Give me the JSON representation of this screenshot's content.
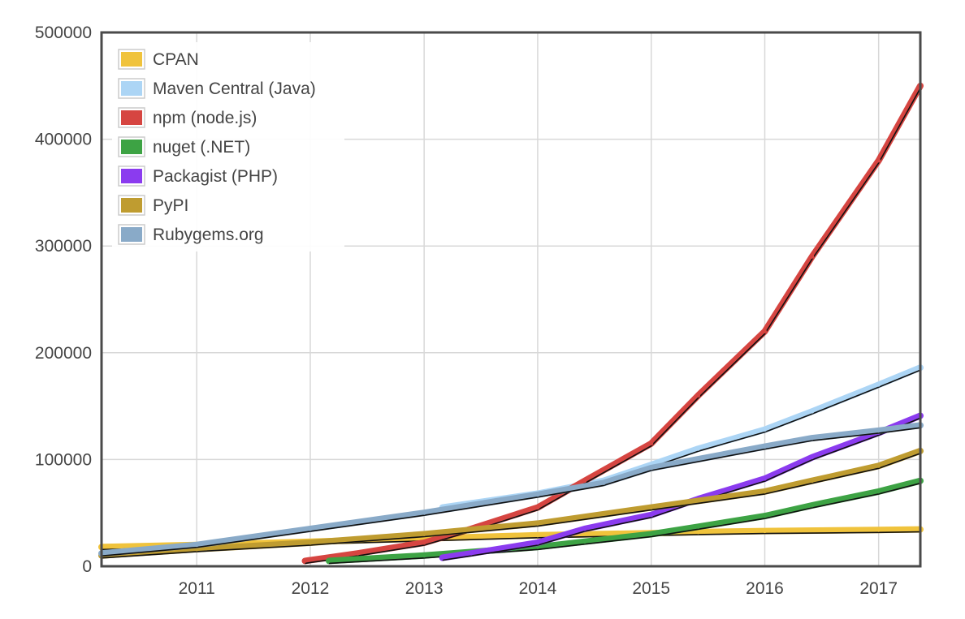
{
  "chart_data": {
    "type": "line",
    "title": "",
    "xlabel": "",
    "ylabel": "",
    "xlim": [
      "2010-03-01",
      "2017-05-15"
    ],
    "ylim": [
      0,
      500000
    ],
    "y_ticks": [
      0,
      100000,
      200000,
      300000,
      400000,
      500000
    ],
    "y_tick_labels": [
      "0",
      "100000",
      "200000",
      "300000",
      "400000",
      "500000"
    ],
    "x_ticks": [
      "2011-01-01",
      "2012-01-01",
      "2013-01-01",
      "2014-01-01",
      "2015-01-01",
      "2016-01-01",
      "2017-01-01"
    ],
    "x_tick_labels": [
      "2011",
      "2012",
      "2013",
      "2014",
      "2015",
      "2016",
      "2017"
    ],
    "grid": true,
    "legend_position": "top-left",
    "series": [
      {
        "name": "CPAN",
        "color": "#f0c33c",
        "x": [
          "2010-03-01",
          "2011-01-01",
          "2012-01-01",
          "2013-01-01",
          "2014-01-01",
          "2015-01-01",
          "2015-06-01",
          "2016-01-01",
          "2017-01-01",
          "2017-05-15"
        ],
        "y": [
          18000,
          20000,
          23000,
          26000,
          29000,
          31000,
          32000,
          33000,
          34000,
          34500
        ]
      },
      {
        "name": "Maven Central (Java)",
        "color": "#acd5f5",
        "x": [
          "2013-03-01",
          "2014-01-01",
          "2014-08-01",
          "2015-01-01",
          "2015-06-01",
          "2016-01-01",
          "2016-06-01",
          "2017-01-01",
          "2017-05-15"
        ],
        "y": [
          55000,
          68000,
          80000,
          95000,
          110000,
          128000,
          145000,
          170000,
          186000
        ]
      },
      {
        "name": "npm (node.js)",
        "color": "#d64541",
        "x": [
          "2011-12-15",
          "2012-06-01",
          "2013-01-01",
          "2013-06-01",
          "2014-01-01",
          "2014-06-01",
          "2015-01-01",
          "2015-06-01",
          "2016-01-01",
          "2016-06-01",
          "2017-01-01",
          "2017-05-15"
        ],
        "y": [
          5000,
          12000,
          22000,
          35000,
          55000,
          80000,
          115000,
          160000,
          220000,
          290000,
          380000,
          450000
        ]
      },
      {
        "name": "nuget (.NET)",
        "color": "#3da344",
        "x": [
          "2012-03-01",
          "2013-01-01",
          "2014-01-01",
          "2014-06-01",
          "2015-01-01",
          "2015-06-01",
          "2016-01-01",
          "2016-06-01",
          "2017-01-01",
          "2017-05-15"
        ],
        "y": [
          5000,
          10000,
          18000,
          23000,
          30000,
          37000,
          47000,
          57000,
          70000,
          80000
        ]
      },
      {
        "name": "Packagist (PHP)",
        "color": "#8b3bef",
        "x": [
          "2013-03-01",
          "2013-06-01",
          "2014-01-01",
          "2014-06-01",
          "2015-01-01",
          "2015-06-01",
          "2016-01-01",
          "2016-06-01",
          "2017-01-01",
          "2017-05-15"
        ],
        "y": [
          8000,
          12000,
          22000,
          35000,
          48000,
          63000,
          82000,
          102000,
          125000,
          141000
        ]
      },
      {
        "name": "PyPI",
        "color": "#bf9c30",
        "x": [
          "2010-03-01",
          "2011-01-01",
          "2012-01-01",
          "2013-01-01",
          "2014-01-01",
          "2015-01-01",
          "2016-01-01",
          "2016-06-01",
          "2017-01-01",
          "2017-05-15"
        ],
        "y": [
          10000,
          16000,
          22000,
          30000,
          40000,
          55000,
          70000,
          80000,
          94000,
          108000
        ]
      },
      {
        "name": "Rubygems.org",
        "color": "#89aac8",
        "x": [
          "2010-03-01",
          "2011-01-01",
          "2012-01-01",
          "2013-01-01",
          "2014-01-01",
          "2014-08-01",
          "2015-01-01",
          "2016-01-01",
          "2016-06-01",
          "2017-01-01",
          "2017-05-15"
        ],
        "y": [
          12000,
          20000,
          35000,
          50000,
          67000,
          78000,
          92000,
          112000,
          120000,
          127000,
          132000
        ]
      }
    ]
  }
}
